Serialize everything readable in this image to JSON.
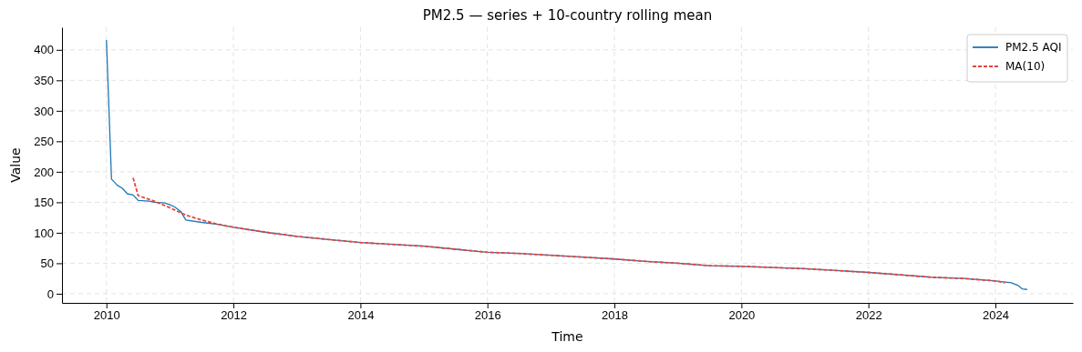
{
  "chart_data": {
    "type": "line",
    "title": "PM2.5 — series + 10-country rolling mean",
    "xlabel": "Time",
    "ylabel": "Value",
    "xlim": [
      2009.3,
      2025.22
    ],
    "xticks": [
      2010,
      2012,
      2014,
      2016,
      2018,
      2020,
      2022,
      2024
    ],
    "ylim": [
      -15,
      437
    ],
    "yticks": [
      0,
      50,
      100,
      150,
      200,
      250,
      300,
      350,
      400
    ],
    "grid": true,
    "legend": "top right",
    "series": [
      {
        "name": "PM2.5 AQI",
        "color": "#1f77b4",
        "line_style": "solid",
        "x": [
          2010,
          2010.08,
          2010.17,
          2010.25,
          2010.33,
          2010.42,
          2010.5,
          2010.67,
          2010.75,
          2010.92,
          2011,
          2011.08,
          2011.17,
          2011.25,
          2011.5,
          2011.75,
          2012,
          2012.5,
          2013,
          2013.5,
          2014,
          2014.5,
          2015,
          2015.5,
          2016,
          2016.5,
          2017,
          2017.5,
          2018,
          2018.5,
          2019,
          2019.5,
          2020,
          2020.5,
          2021,
          2021.5,
          2022,
          2022.5,
          2023,
          2023.5,
          2024,
          2024.25,
          2024.35,
          2024.42,
          2024.5
        ],
        "values": [
          416,
          188,
          178,
          173,
          164,
          162,
          153,
          152,
          150,
          149,
          146,
          142,
          135,
          121,
          117,
          114,
          109,
          101,
          94,
          89,
          84,
          81,
          78,
          73,
          68,
          66,
          63,
          60,
          57,
          53,
          50,
          46,
          45,
          43,
          41,
          38,
          35,
          31,
          27,
          25,
          21,
          18,
          14,
          8,
          7
        ]
      },
      {
        "name": "MA(10)",
        "color": "#e8453c",
        "line_style": "dashed",
        "x": [
          2010.42,
          2010.5,
          2010.75,
          2011,
          2011.25,
          2011.5,
          2011.75,
          2012,
          2012.5,
          2013,
          2013.5,
          2014,
          2014.5,
          2015,
          2015.5,
          2016,
          2016.5,
          2017,
          2017.5,
          2018,
          2018.5,
          2019,
          2019.5,
          2020,
          2020.5,
          2021,
          2021.5,
          2022,
          2022.5,
          2023,
          2023.5,
          2024,
          2024.15
        ],
        "values": [
          190,
          161,
          152,
          141,
          129,
          121,
          114,
          109,
          101,
          94,
          89,
          84,
          81,
          78,
          73,
          68,
          66,
          63,
          60,
          57,
          53,
          50,
          46,
          45,
          43,
          41,
          38,
          35,
          31,
          27,
          25,
          21,
          18
        ]
      }
    ]
  }
}
